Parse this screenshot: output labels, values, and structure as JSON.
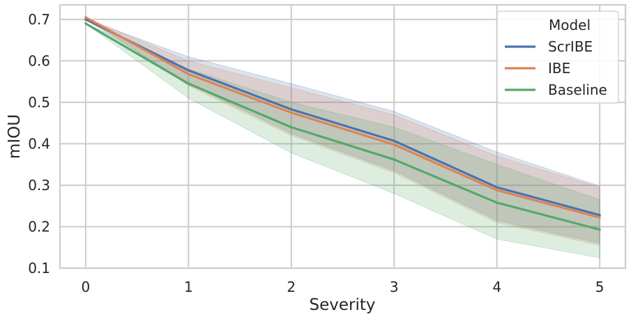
{
  "chart_data": {
    "type": "line",
    "title": "",
    "xlabel": "Severity",
    "ylabel": "mIOU",
    "x": [
      0,
      1,
      2,
      3,
      4,
      5
    ],
    "xticks": [
      "0",
      "1",
      "2",
      "3",
      "4",
      "5"
    ],
    "yticks": [
      "0.1",
      "0.2",
      "0.3",
      "0.4",
      "0.5",
      "0.6",
      "0.7"
    ],
    "xlim": [
      -0.25,
      5.25
    ],
    "ylim": [
      0.1,
      0.735
    ],
    "grid": true,
    "legend": {
      "title": "Model",
      "placement": "top-right"
    },
    "series": [
      {
        "name": "ScrIBE",
        "color": "#4c72b0",
        "values": [
          0.7,
          0.577,
          0.483,
          0.407,
          0.295,
          0.228
        ],
        "band_low": [
          0.7,
          0.545,
          0.425,
          0.335,
          0.215,
          0.16
        ],
        "band_high": [
          0.7,
          0.61,
          0.545,
          0.478,
          0.38,
          0.298
        ]
      },
      {
        "name": "IBE",
        "color": "#dd8452",
        "values": [
          0.705,
          0.568,
          0.475,
          0.398,
          0.288,
          0.222
        ],
        "band_low": [
          0.705,
          0.54,
          0.42,
          0.33,
          0.21,
          0.155
        ],
        "band_high": [
          0.705,
          0.6,
          0.535,
          0.47,
          0.37,
          0.295
        ]
      },
      {
        "name": "Baseline",
        "color": "#55a868",
        "values": [
          0.69,
          0.545,
          0.44,
          0.362,
          0.258,
          0.193
        ],
        "band_low": [
          0.69,
          0.51,
          0.378,
          0.28,
          0.17,
          0.125
        ],
        "band_high": [
          0.69,
          0.58,
          0.5,
          0.44,
          0.35,
          0.265
        ]
      }
    ]
  }
}
